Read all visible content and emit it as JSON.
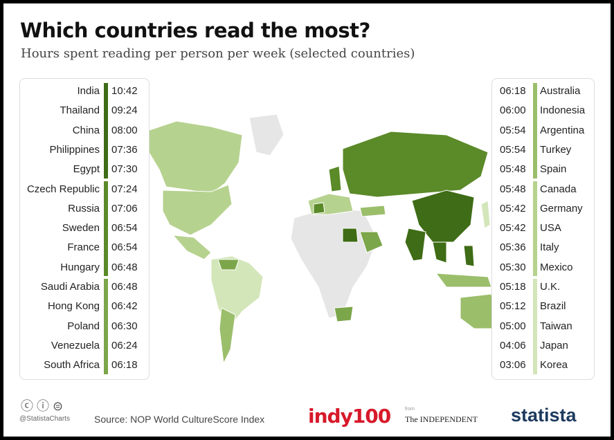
{
  "header": {
    "title": "Which countries read the most?",
    "subtitle": "Hours spent reading per person per week (selected countries)"
  },
  "left_panel": {
    "groups": [
      {
        "color": "#3f6c16",
        "rows": [
          {
            "country": "India",
            "hours": "10:42"
          },
          {
            "country": "Thailand",
            "hours": "09:24"
          },
          {
            "country": "China",
            "hours": "08:00"
          },
          {
            "country": "Philippines",
            "hours": "07:36"
          },
          {
            "country": "Egypt",
            "hours": "07:30"
          }
        ]
      },
      {
        "color": "#5b8a29",
        "rows": [
          {
            "country": "Czech Republic",
            "hours": "07:24"
          },
          {
            "country": "Russia",
            "hours": "07:06"
          },
          {
            "country": "Sweden",
            "hours": "06:54"
          },
          {
            "country": "France",
            "hours": "06:54"
          },
          {
            "country": "Hungary",
            "hours": "06:48"
          }
        ]
      },
      {
        "color": "#7ca64a",
        "rows": [
          {
            "country": "Saudi Arabia",
            "hours": "06:48"
          },
          {
            "country": "Hong Kong",
            "hours": "06:42"
          },
          {
            "country": "Poland",
            "hours": "06:30"
          },
          {
            "country": "Venezuela",
            "hours": "06:24"
          },
          {
            "country": "South Africa",
            "hours": "06:18"
          }
        ]
      }
    ]
  },
  "right_panel": {
    "groups": [
      {
        "color": "#9bbe6b",
        "rows": [
          {
            "country": "Australia",
            "hours": "06:18"
          },
          {
            "country": "Indonesia",
            "hours": "06:00"
          },
          {
            "country": "Argentina",
            "hours": "05:54"
          },
          {
            "country": "Turkey",
            "hours": "05:54"
          },
          {
            "country": "Spain",
            "hours": "05:48"
          }
        ]
      },
      {
        "color": "#b6d28f",
        "rows": [
          {
            "country": "Canada",
            "hours": "05:48"
          },
          {
            "country": "Germany",
            "hours": "05:42"
          },
          {
            "country": "USA",
            "hours": "05:42"
          },
          {
            "country": "Italy",
            "hours": "05:36"
          },
          {
            "country": "Mexico",
            "hours": "05:30"
          }
        ]
      },
      {
        "color": "#d3e6b9",
        "rows": [
          {
            "country": "U.K.",
            "hours": "05:18"
          },
          {
            "country": "Brazil",
            "hours": "05:12"
          },
          {
            "country": "Taiwan",
            "hours": "05:00"
          },
          {
            "country": "Japan",
            "hours": "04:06"
          },
          {
            "country": "Korea",
            "hours": "03:06"
          }
        ]
      }
    ]
  },
  "footer": {
    "handle": "@StatistaCharts",
    "source": "Source: NOP World CultureScore Index",
    "logo_indy": "indy100",
    "logo_from": "from",
    "logo_independent": "The INDEPENDENT",
    "logo_statista": "statista"
  }
}
